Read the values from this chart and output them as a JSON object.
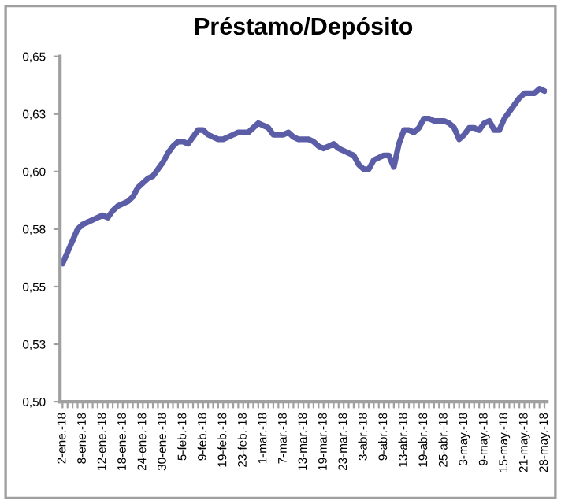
{
  "chart_data": {
    "type": "line",
    "title": "Préstamo/Depósito",
    "categories": [
      "2-ene.-18",
      null,
      null,
      null,
      "8-ene.-18",
      null,
      null,
      null,
      "12-ene.-18",
      null,
      null,
      null,
      "18-ene.-18",
      null,
      null,
      null,
      "24-ene.-18",
      null,
      null,
      null,
      "30-ene.-18",
      null,
      null,
      null,
      "5-feb.-18",
      null,
      null,
      null,
      "9-feb.-18",
      null,
      null,
      null,
      "19-feb.-18",
      null,
      null,
      null,
      "23-feb.-18",
      null,
      null,
      null,
      "1-mar.-18",
      null,
      null,
      null,
      "7-mar.-18",
      null,
      null,
      null,
      "13-mar.-18",
      null,
      null,
      null,
      "19-mar.-18",
      null,
      null,
      null,
      "23-mar.-18",
      null,
      null,
      null,
      "3-abr.-18",
      null,
      null,
      null,
      "9-abr.-18",
      null,
      null,
      null,
      "13-abr.-18",
      null,
      null,
      null,
      "19-abr.-18",
      null,
      null,
      null,
      "25-abr.-18",
      null,
      null,
      null,
      "3-may.-18",
      null,
      null,
      null,
      "9-may.-18",
      null,
      null,
      null,
      "15-may.-18",
      null,
      null,
      null,
      "21-may.-18",
      null,
      null,
      null,
      "28-may.-18"
    ],
    "series": [
      {
        "color": "#5b5ea6",
        "values": [
          0.56,
          0.565,
          0.57,
          0.575,
          0.577,
          0.578,
          0.579,
          0.58,
          0.581,
          0.58,
          0.583,
          0.585,
          0.586,
          0.587,
          0.589,
          0.593,
          0.595,
          0.597,
          0.598,
          0.601,
          0.604,
          0.608,
          0.611,
          0.613,
          0.613,
          0.612,
          0.615,
          0.618,
          0.618,
          0.616,
          0.615,
          0.614,
          0.614,
          0.615,
          0.616,
          0.617,
          0.617,
          0.617,
          0.619,
          0.621,
          0.62,
          0.619,
          0.616,
          0.616,
          0.616,
          0.617,
          0.615,
          0.614,
          0.614,
          0.614,
          0.613,
          0.611,
          0.61,
          0.611,
          0.612,
          0.61,
          0.609,
          0.608,
          0.607,
          0.603,
          0.601,
          0.601,
          0.605,
          0.606,
          0.607,
          0.607,
          0.602,
          0.612,
          0.618,
          0.618,
          0.617,
          0.619,
          0.623,
          0.623,
          0.622,
          0.622,
          0.622,
          0.621,
          0.619,
          0.614,
          0.616,
          0.619,
          0.619,
          0.618,
          0.621,
          0.622,
          0.618,
          0.618,
          0.623,
          0.626,
          0.629,
          0.632,
          0.634,
          0.634,
          0.634,
          0.636,
          0.635
        ]
      }
    ],
    "ylim": [
      0.5,
      0.65
    ],
    "yticks": [
      {
        "value": 0.5,
        "label": "0,50"
      },
      {
        "value": 0.525,
        "label": "0,53"
      },
      {
        "value": 0.55,
        "label": "0,55"
      },
      {
        "value": 0.575,
        "label": "0,58"
      },
      {
        "value": 0.6,
        "label": "0,60"
      },
      {
        "value": 0.625,
        "label": "0,63"
      },
      {
        "value": 0.65,
        "label": "0,65"
      }
    ],
    "grid": false,
    "legend": false
  }
}
